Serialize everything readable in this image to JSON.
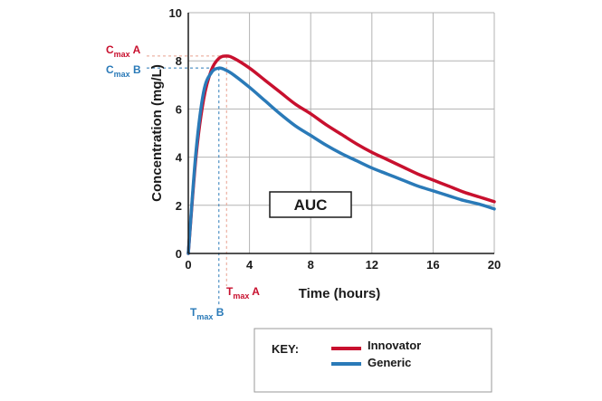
{
  "chart_data": {
    "type": "line",
    "title": "",
    "xlabel": "Time (hours)",
    "ylabel": "Concentration (mg/L)",
    "xlim": [
      0,
      20
    ],
    "ylim": [
      0,
      10
    ],
    "x_ticks": [
      0,
      4,
      8,
      12,
      16,
      20
    ],
    "y_ticks": [
      0,
      2,
      4,
      6,
      8,
      10
    ],
    "grid": true,
    "annotation": "AUC",
    "series": [
      {
        "name": "Innovator",
        "color": "#c8102e",
        "x": [
          0,
          0.5,
          1,
          1.5,
          2,
          2.5,
          3,
          4,
          5,
          6,
          7,
          8,
          9,
          10,
          11,
          12,
          13,
          14,
          15,
          16,
          17,
          18,
          19,
          20
        ],
        "y": [
          0,
          4.0,
          6.4,
          7.6,
          8.1,
          8.2,
          8.1,
          7.7,
          7.2,
          6.7,
          6.2,
          5.8,
          5.35,
          4.95,
          4.55,
          4.2,
          3.9,
          3.6,
          3.3,
          3.05,
          2.8,
          2.55,
          2.35,
          2.15
        ]
      },
      {
        "name": "Generic",
        "color": "#2a7ab8",
        "x": [
          0,
          0.5,
          1,
          1.5,
          2,
          2.5,
          3,
          4,
          5,
          6,
          7,
          8,
          9,
          10,
          11,
          12,
          13,
          14,
          15,
          16,
          17,
          18,
          19,
          20
        ],
        "y": [
          0,
          4.2,
          6.7,
          7.5,
          7.7,
          7.6,
          7.4,
          6.9,
          6.35,
          5.8,
          5.3,
          4.9,
          4.5,
          4.15,
          3.85,
          3.55,
          3.3,
          3.05,
          2.8,
          2.6,
          2.4,
          2.2,
          2.05,
          1.85
        ]
      }
    ],
    "markers": {
      "cmax_a": {
        "text": "C",
        "sub": "max",
        "suffix": " A",
        "value": 8.2
      },
      "cmax_b": {
        "text": "C",
        "sub": "max",
        "suffix": " B",
        "value": 7.7
      },
      "tmax_a": {
        "text": "T",
        "sub": "max",
        "suffix": " A",
        "value": 2.5
      },
      "tmax_b": {
        "text": "T",
        "sub": "max",
        "suffix": " B",
        "value": 2.0
      }
    },
    "key": {
      "label": "KEY:",
      "entries": [
        "Innovator",
        "Generic"
      ]
    }
  }
}
